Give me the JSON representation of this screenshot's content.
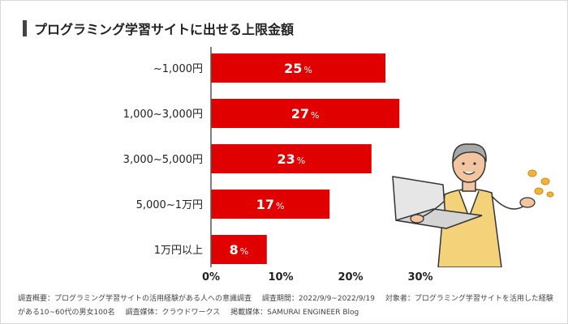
{
  "title": "プログラミング学習サイトに出せる上限金額",
  "colors": {
    "bar": "#e00000",
    "axis": "#555555",
    "title_bar": "#444444"
  },
  "chart_data": {
    "type": "bar",
    "orientation": "horizontal",
    "categories": [
      "~1,000円",
      "1,000~3,000円",
      "3,000~5,000円",
      "5,000~1万円",
      "1万円以上"
    ],
    "values": [
      25,
      27,
      23,
      17,
      8
    ],
    "value_suffix": "%",
    "x_ticks": [
      "0%",
      "10%",
      "20%",
      "30%"
    ],
    "xlim": [
      0,
      30
    ],
    "grid": false
  },
  "footnote": {
    "overview": "調査概要：プログラミング学習サイトの活用経験がある人への意識調査",
    "period": "調査期間：2022/9/9~2022/9/19",
    "target": "対象者：プログラミング学習サイトを活用した経験がある10~60代の男女100名",
    "medium": "調査媒体：クラウドワークス",
    "published": "掲載媒体：SAMURAI ENGINEER Blog"
  }
}
